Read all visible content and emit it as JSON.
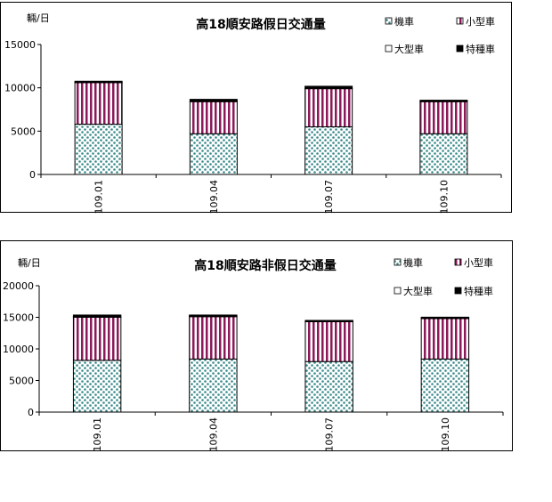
{
  "chart_data": [
    {
      "type": "bar",
      "stacked": true,
      "title": "高18順安路假日交通量",
      "ylabel": "輛/日",
      "xlabel": "",
      "ylim": [
        0,
        15000
      ],
      "yticks": [
        0,
        5000,
        10000,
        15000
      ],
      "categories": [
        "109.01",
        "109.04",
        "109.07",
        "109.10"
      ],
      "legend_position": "top-right",
      "grid": false,
      "series": [
        {
          "name": "機車",
          "pattern": "dots",
          "color": "#3a8a8a",
          "values": [
            5800,
            4700,
            5500,
            4700
          ]
        },
        {
          "name": "小型車",
          "pattern": "stripes",
          "color": "#8b1a5a",
          "values": [
            4800,
            3700,
            4400,
            3700
          ]
        },
        {
          "name": "大型車",
          "pattern": "white",
          "color": "#ffffff",
          "values": [
            40,
            40,
            40,
            40
          ]
        },
        {
          "name": "特種車",
          "pattern": "black",
          "color": "#000000",
          "values": [
            120,
            230,
            240,
            130
          ]
        }
      ]
    },
    {
      "type": "bar",
      "stacked": true,
      "title": "高18順安路非假日交通量",
      "ylabel": "輛/日",
      "xlabel": "",
      "ylim": [
        0,
        20000
      ],
      "yticks": [
        0,
        5000,
        10000,
        15000,
        20000
      ],
      "categories": [
        "109.01",
        "109.04",
        "109.07",
        "109.10"
      ],
      "legend_position": "top-right",
      "grid": false,
      "series": [
        {
          "name": "機車",
          "pattern": "dots",
          "color": "#3a8a8a",
          "values": [
            8200,
            8400,
            8000,
            8400
          ]
        },
        {
          "name": "小型車",
          "pattern": "stripes",
          "color": "#8b1a5a",
          "values": [
            6800,
            6700,
            6300,
            6400
          ]
        },
        {
          "name": "大型車",
          "pattern": "white",
          "color": "#ffffff",
          "values": [
            60,
            60,
            60,
            60
          ]
        },
        {
          "name": "特種車",
          "pattern": "black",
          "color": "#000000",
          "values": [
            300,
            200,
            150,
            160
          ]
        }
      ]
    }
  ]
}
